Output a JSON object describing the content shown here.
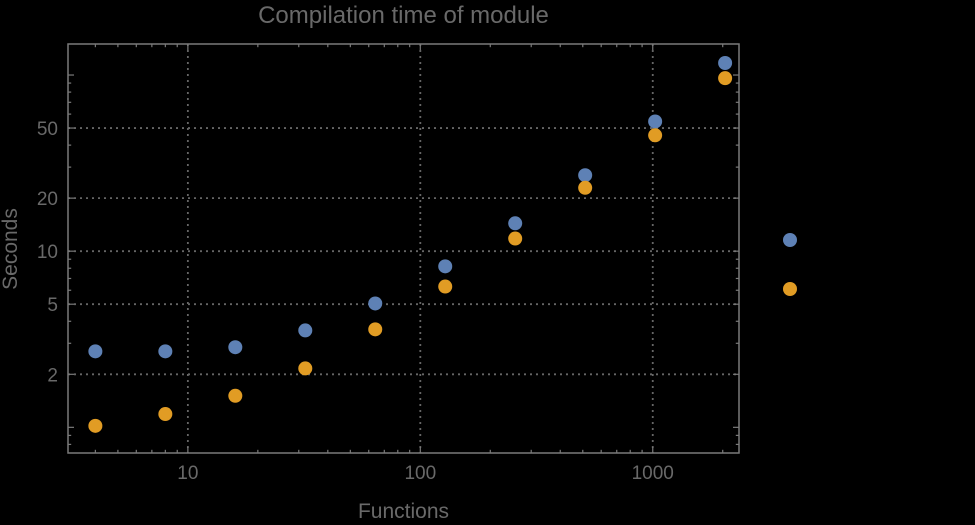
{
  "chart_data": {
    "type": "scatter",
    "title": "Compilation time of module",
    "xlabel": "Functions",
    "ylabel": "Seconds",
    "xscale": "log",
    "yscale": "log",
    "xlim": [
      3.05,
      2350
    ],
    "ylim": [
      0.715,
      150
    ],
    "grid": "dotted",
    "x": [
      4,
      8,
      16,
      32,
      64,
      128,
      256,
      512,
      1024,
      2048
    ],
    "series": [
      {
        "name": "series-1-blue",
        "color": "#5e81b5",
        "values": [
          2.7,
          2.7,
          2.85,
          3.55,
          5.05,
          8.2,
          14.4,
          27,
          54.5,
          117
        ]
      },
      {
        "name": "series-2-orange",
        "color": "#e19c24",
        "values": [
          1.02,
          1.19,
          1.51,
          2.16,
          3.6,
          6.3,
          11.8,
          22.9,
          45.5,
          96
        ]
      }
    ],
    "x_ticks": [
      {
        "value": 10,
        "label": "10"
      },
      {
        "value": 100,
        "label": "100"
      },
      {
        "value": 1000,
        "label": "1000"
      }
    ],
    "y_ticks": [
      {
        "value": 2,
        "label": "2"
      },
      {
        "value": 5,
        "label": "5"
      },
      {
        "value": 10,
        "label": "10"
      },
      {
        "value": 20,
        "label": "20"
      },
      {
        "value": 50,
        "label": "50"
      }
    ],
    "legend": {
      "position": "outside-right",
      "labels_visible": false,
      "markers": [
        {
          "color": "#5e81b5"
        },
        {
          "color": "#e19c24"
        }
      ]
    }
  },
  "colors": {
    "background": "#000000",
    "frame": "#7a7a7a",
    "grid": "#666666",
    "text": "#696969"
  }
}
